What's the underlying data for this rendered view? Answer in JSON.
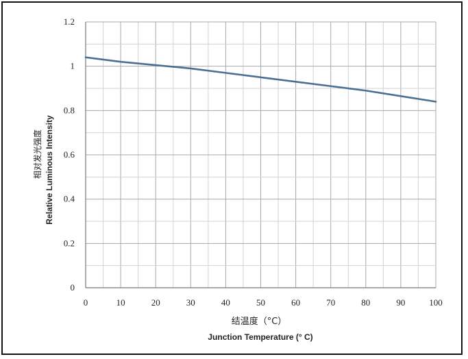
{
  "chart_data": {
    "type": "line",
    "title": "",
    "xlabel_cn": "结温度（°C）",
    "xlabel": "Junction Temperature (° C)",
    "ylabel_cn": "相对发光强度",
    "ylabel": "Relative Luminous Intensity",
    "xlim": [
      0,
      100
    ],
    "ylim": [
      0,
      1.2
    ],
    "x_ticks": [
      0,
      10,
      20,
      30,
      40,
      50,
      60,
      70,
      80,
      90,
      100
    ],
    "x_tick_labels": [
      "0",
      "10",
      "20",
      "30",
      "40",
      "50",
      "60",
      "70",
      "80",
      "90",
      "100"
    ],
    "y_ticks": [
      0,
      0.2,
      0.4,
      0.6,
      0.8,
      1,
      1.2
    ],
    "y_tick_labels": [
      "0",
      "0.2",
      "0.4",
      "0.6",
      "0.8",
      "1",
      "1.2"
    ],
    "grid": true,
    "legend": "none",
    "series": [
      {
        "color": "#4a6f94",
        "x": [
          0,
          10,
          20,
          30,
          40,
          50,
          60,
          70,
          80,
          90,
          100
        ],
        "values": [
          1.04,
          1.02,
          1.005,
          0.99,
          0.97,
          0.95,
          0.93,
          0.91,
          0.89,
          0.865,
          0.84
        ]
      }
    ]
  }
}
